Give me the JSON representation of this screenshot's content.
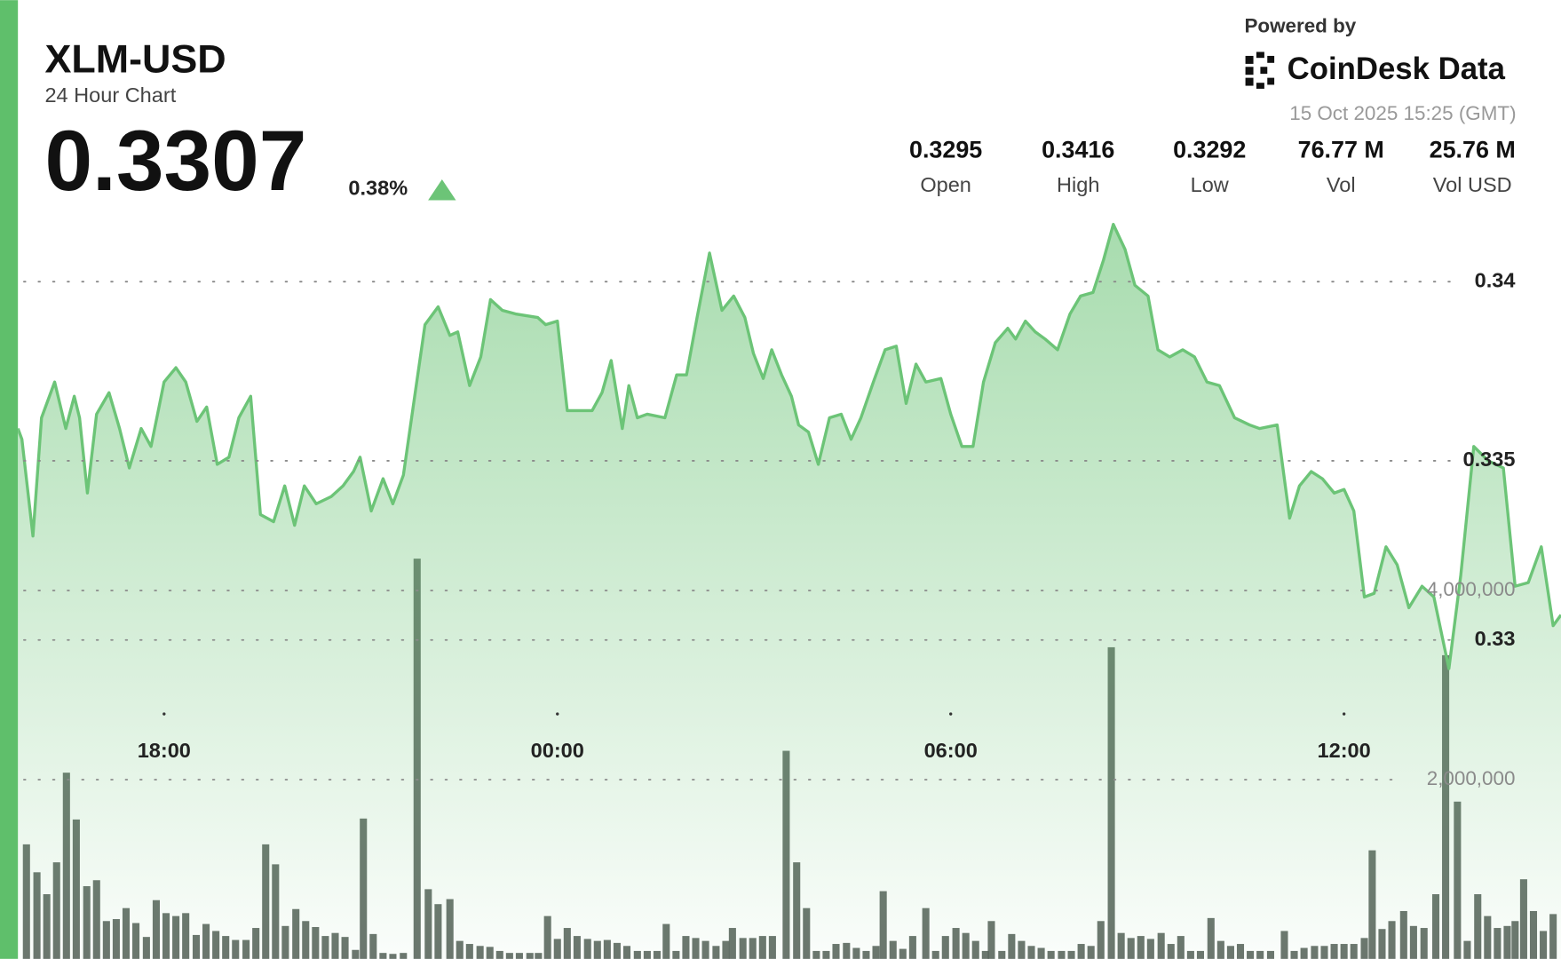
{
  "chart_data": {
    "type": "line",
    "title": "XLM-USD",
    "subtitle": "24 Hour Chart",
    "price": 0.3307,
    "change": "0.38%",
    "powered_by": "Powered by",
    "brand": "CoinDesk Data",
    "timestamp": "15 Oct 2025 15:25 (GMT)",
    "stats": [
      {
        "value": 0.3295,
        "label": "Open"
      },
      {
        "value": 0.3416,
        "label": "High"
      },
      {
        "value": 0.3292,
        "label": "Low"
      },
      {
        "value": "76.77 M",
        "label": "Vol"
      },
      {
        "value": "25.76 M",
        "label": "Vol USD"
      }
    ],
    "xlim": [
      15.77,
      39.31
    ],
    "xticks": [
      {
        "value": 18,
        "label": "18:00"
      },
      {
        "value": 24,
        "label": "00:00"
      },
      {
        "value": 30,
        "label": "06:00"
      },
      {
        "value": 36,
        "label": "12:00"
      }
    ],
    "ylim": [
      0.3211,
      0.3423
    ],
    "yticks": [
      0.33,
      0.335,
      0.34
    ],
    "y2lim": [
      0,
      8137000
    ],
    "y2ticks": [
      {
        "value": 2000000,
        "label": "2,000,000"
      },
      {
        "value": 4000000,
        "label": "4,000,000"
      }
    ],
    "grid": true,
    "series": [
      {
        "color": "#6cc477",
        "x": [
          15.77,
          15.83,
          16.0,
          16.13,
          16.33,
          16.5,
          16.63,
          16.71,
          16.83,
          16.97,
          17.16,
          17.32,
          17.47,
          17.65,
          17.8,
          18.0,
          18.18,
          18.33,
          18.5,
          18.65,
          18.81,
          18.99,
          19.14,
          19.32,
          19.47,
          19.67,
          19.84,
          19.99,
          20.14,
          20.32,
          20.55,
          20.73,
          20.89,
          20.99,
          21.16,
          21.34,
          21.49,
          21.65,
          21.8,
          21.98,
          22.18,
          22.36,
          22.48,
          22.66,
          22.83,
          22.98,
          23.16,
          23.36,
          23.7,
          23.82,
          24.0,
          24.15,
          24.53,
          24.68,
          24.82,
          24.99,
          25.09,
          25.22,
          25.37,
          25.64,
          25.82,
          25.97,
          26.13,
          26.32,
          26.51,
          26.69,
          26.86,
          26.99,
          27.14,
          27.27,
          27.42,
          27.57,
          27.68,
          27.83,
          27.98,
          28.15,
          28.33,
          28.48,
          28.63,
          28.82,
          29.0,
          29.17,
          29.32,
          29.47,
          29.62,
          29.85,
          30.0,
          30.17,
          30.34,
          30.5,
          30.68,
          30.87,
          30.99,
          31.14,
          31.29,
          31.44,
          31.63,
          31.82,
          31.98,
          32.17,
          32.33,
          32.48,
          32.66,
          32.81,
          33.01,
          33.16,
          33.34,
          33.54,
          33.72,
          33.91,
          34.1,
          34.33,
          34.56,
          34.71,
          34.98,
          35.17,
          35.32,
          35.5,
          35.67,
          35.85,
          36.0,
          36.15,
          36.31,
          36.46,
          36.64,
          36.81,
          36.99,
          37.19,
          37.37,
          37.6,
          37.78,
          37.98,
          38.2,
          38.43,
          38.61,
          38.81,
          39.01,
          39.19,
          39.31
        ],
        "values": [
          0.3359,
          0.3356,
          0.3329,
          0.3362,
          0.3372,
          0.3359,
          0.3368,
          0.3362,
          0.3341,
          0.3363,
          0.3369,
          0.3359,
          0.3348,
          0.3359,
          0.3354,
          0.3372,
          0.3376,
          0.3372,
          0.3361,
          0.3365,
          0.3349,
          0.3351,
          0.3362,
          0.3368,
          0.3335,
          0.3333,
          0.3343,
          0.3332,
          0.3343,
          0.3338,
          0.334,
          0.3343,
          0.3347,
          0.3351,
          0.3336,
          0.3345,
          0.3338,
          0.3346,
          0.3365,
          0.3388,
          0.3393,
          0.3385,
          0.3386,
          0.3371,
          0.3379,
          0.3395,
          0.3392,
          0.3391,
          0.339,
          0.3388,
          0.3389,
          0.3364,
          0.3364,
          0.3369,
          0.3378,
          0.3359,
          0.3371,
          0.3362,
          0.3363,
          0.3362,
          0.3374,
          0.3374,
          0.339,
          0.3408,
          0.3392,
          0.3396,
          0.339,
          0.338,
          0.3373,
          0.3381,
          0.3374,
          0.3368,
          0.336,
          0.3358,
          0.3349,
          0.3362,
          0.3363,
          0.3356,
          0.3362,
          0.3372,
          0.3381,
          0.3382,
          0.3366,
          0.3377,
          0.3372,
          0.3373,
          0.3363,
          0.3354,
          0.3354,
          0.3372,
          0.3383,
          0.3387,
          0.3384,
          0.3389,
          0.3386,
          0.3384,
          0.3381,
          0.3391,
          0.3396,
          0.3397,
          0.3406,
          0.3416,
          0.3409,
          0.3399,
          0.3396,
          0.3381,
          0.3379,
          0.3381,
          0.3379,
          0.3372,
          0.3371,
          0.3362,
          0.336,
          0.3359,
          0.336,
          0.3334,
          0.3343,
          0.3347,
          0.3345,
          0.3341,
          0.3342,
          0.3336,
          0.3312,
          0.3313,
          0.3326,
          0.3321,
          0.3309,
          0.3315,
          0.3312,
          0.3292,
          0.3318,
          0.3354,
          0.335,
          0.3348,
          0.3315,
          0.3316,
          0.3326,
          0.3304,
          0.3307
        ]
      },
      {
        "type": "bar",
        "axis": "y2",
        "color": "#56615a",
        "x": [
          15.9,
          16.06,
          16.21,
          16.36,
          16.51,
          16.66,
          16.82,
          16.97,
          17.12,
          17.27,
          17.42,
          17.57,
          17.73,
          17.88,
          18.03,
          18.18,
          18.33,
          18.49,
          18.64,
          18.79,
          18.94,
          19.09,
          19.25,
          19.4,
          19.55,
          19.7,
          19.85,
          20.01,
          20.16,
          20.31,
          20.46,
          20.61,
          20.76,
          20.92,
          21.04,
          21.19,
          21.34,
          21.49,
          21.65,
          21.86,
          22.03,
          22.18,
          22.36,
          22.51,
          22.66,
          22.82,
          22.97,
          23.12,
          23.27,
          23.42,
          23.58,
          23.71,
          23.85,
          24.0,
          24.15,
          24.3,
          24.46,
          24.61,
          24.76,
          24.91,
          25.06,
          25.22,
          25.37,
          25.52,
          25.66,
          25.81,
          25.96,
          26.11,
          26.26,
          26.42,
          26.57,
          26.67,
          26.83,
          26.98,
          27.13,
          27.28,
          27.49,
          27.65,
          27.8,
          27.95,
          28.1,
          28.25,
          28.41,
          28.56,
          28.71,
          28.86,
          28.97,
          29.12,
          29.27,
          29.42,
          29.62,
          29.77,
          29.92,
          30.08,
          30.23,
          30.38,
          30.53,
          30.62,
          30.78,
          30.93,
          31.08,
          31.23,
          31.38,
          31.53,
          31.69,
          31.84,
          31.99,
          32.14,
          32.29,
          32.45,
          32.6,
          32.75,
          32.9,
          33.05,
          33.21,
          33.36,
          33.51,
          33.66,
          33.81,
          33.97,
          34.12,
          34.27,
          34.42,
          34.57,
          34.72,
          34.88,
          35.09,
          35.24,
          35.39,
          35.55,
          35.7,
          35.85,
          36.0,
          36.15,
          36.31,
          36.43,
          36.58,
          36.73,
          36.91,
          37.06,
          37.22,
          37.4,
          37.55,
          37.73,
          37.88,
          38.04,
          38.19,
          38.34,
          38.49,
          38.61,
          38.74,
          38.89,
          39.04,
          39.19
        ],
        "values": [
          1316000,
          1021000,
          789000,
          1126000,
          2074000,
          1579000,
          874000,
          937000,
          505000,
          526000,
          642000,
          484000,
          337000,
          726000,
          589000,
          558000,
          589000,
          358000,
          474000,
          400000,
          347000,
          305000,
          305000,
          432000,
          1316000,
          1105000,
          453000,
          632000,
          505000,
          442000,
          347000,
          379000,
          337000,
          200000,
          1589000,
          368000,
          168000,
          158000,
          168000,
          4337000,
          842000,
          684000,
          737000,
          295000,
          263000,
          242000,
          232000,
          189000,
          168000,
          168000,
          168000,
          168000,
          558000,
          316000,
          432000,
          347000,
          316000,
          295000,
          305000,
          274000,
          242000,
          189000,
          189000,
          189000,
          474000,
          189000,
          347000,
          326000,
          295000,
          242000,
          295000,
          432000,
          326000,
          326000,
          347000,
          347000,
          2305000,
          1126000,
          642000,
          189000,
          189000,
          263000,
          274000,
          221000,
          189000,
          242000,
          821000,
          295000,
          211000,
          347000,
          642000,
          189000,
          347000,
          432000,
          379000,
          295000,
          189000,
          505000,
          189000,
          368000,
          295000,
          242000,
          221000,
          189000,
          189000,
          189000,
          263000,
          242000,
          505000,
          3400000,
          379000,
          326000,
          347000,
          316000,
          379000,
          263000,
          347000,
          189000,
          189000,
          537000,
          295000,
          242000,
          263000,
          189000,
          189000,
          189000,
          400000,
          189000,
          221000,
          242000,
          242000,
          263000,
          263000,
          263000,
          326000,
          1253000,
          421000,
          505000,
          611000,
          453000,
          432000,
          789000,
          3316000,
          1768000,
          295000,
          789000,
          558000,
          432000,
          453000,
          505000,
          947000,
          611000,
          400000,
          579000
        ]
      }
    ]
  }
}
